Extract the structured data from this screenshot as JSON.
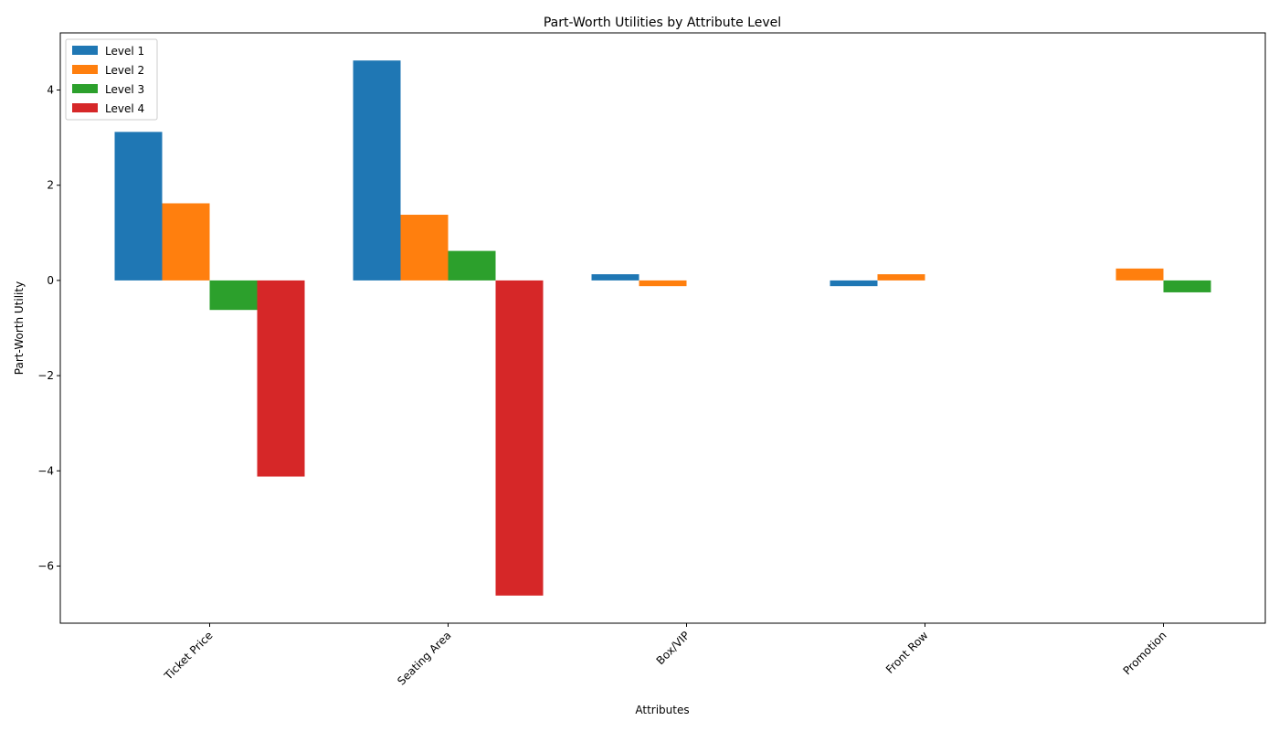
{
  "chart_data": {
    "type": "bar",
    "title": "Part-Worth Utilities by Attribute Level",
    "xlabel": "Attributes",
    "ylabel": "Part-Worth Utility",
    "categories": [
      "Ticket Price",
      "Seating Area",
      "Box/VIP",
      "Front Row",
      "Promotion"
    ],
    "series": [
      {
        "name": "Level 1",
        "color": "#1f77b4",
        "values": [
          3.12,
          4.62,
          0.13,
          -0.12,
          null
        ]
      },
      {
        "name": "Level 2",
        "color": "#ff7f0e",
        "values": [
          1.62,
          1.38,
          -0.12,
          0.13,
          0.25
        ]
      },
      {
        "name": "Level 3",
        "color": "#2ca02c",
        "values": [
          -0.62,
          0.62,
          null,
          null,
          -0.25
        ]
      },
      {
        "name": "Level 4",
        "color": "#d62728",
        "values": [
          -4.12,
          -6.62,
          null,
          null,
          null
        ]
      }
    ],
    "ylim": [
      -7.2,
      5.2
    ],
    "yticks": [
      -6,
      -4,
      -2,
      0,
      2,
      4
    ],
    "ytick_labels": [
      "−6",
      "−4",
      "−2",
      "0",
      "2",
      "4"
    ],
    "legend_position": "top-left",
    "grid": false
  }
}
